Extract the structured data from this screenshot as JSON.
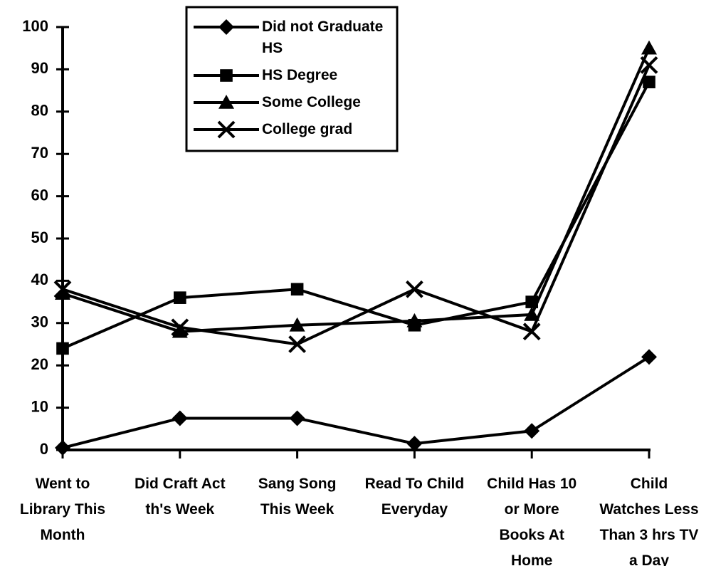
{
  "chart_data": {
    "type": "line",
    "categories": [
      "Went to Library This Month",
      "Did Craft Act th's Week",
      "Sang Song This Week",
      "Read To Child Everyday",
      "Child Has 10 or More Books At Home",
      "Child Watches Less Than 3 hrs TV a Day"
    ],
    "series": [
      {
        "name": "Did not Graduate HS",
        "color": "#000000",
        "marker": "diamond",
        "values": [
          0.5,
          7.5,
          7.5,
          1.5,
          4.5,
          22
        ]
      },
      {
        "name": "HS Degree",
        "color": "#000000",
        "marker": "square",
        "values": [
          24,
          36,
          38,
          29.5,
          35,
          87
        ]
      },
      {
        "name": "Some College",
        "color": "#000000",
        "marker": "triangle",
        "values": [
          37,
          28,
          29.5,
          30.5,
          32,
          95
        ]
      },
      {
        "name": "College grad",
        "color": "#000000",
        "marker": "x",
        "values": [
          38,
          29,
          25,
          38,
          28,
          91
        ]
      }
    ],
    "ylim": [
      0,
      100
    ],
    "yticks": [
      0,
      10,
      20,
      30,
      40,
      50,
      60,
      70,
      80,
      90,
      100
    ],
    "legend": "top"
  }
}
